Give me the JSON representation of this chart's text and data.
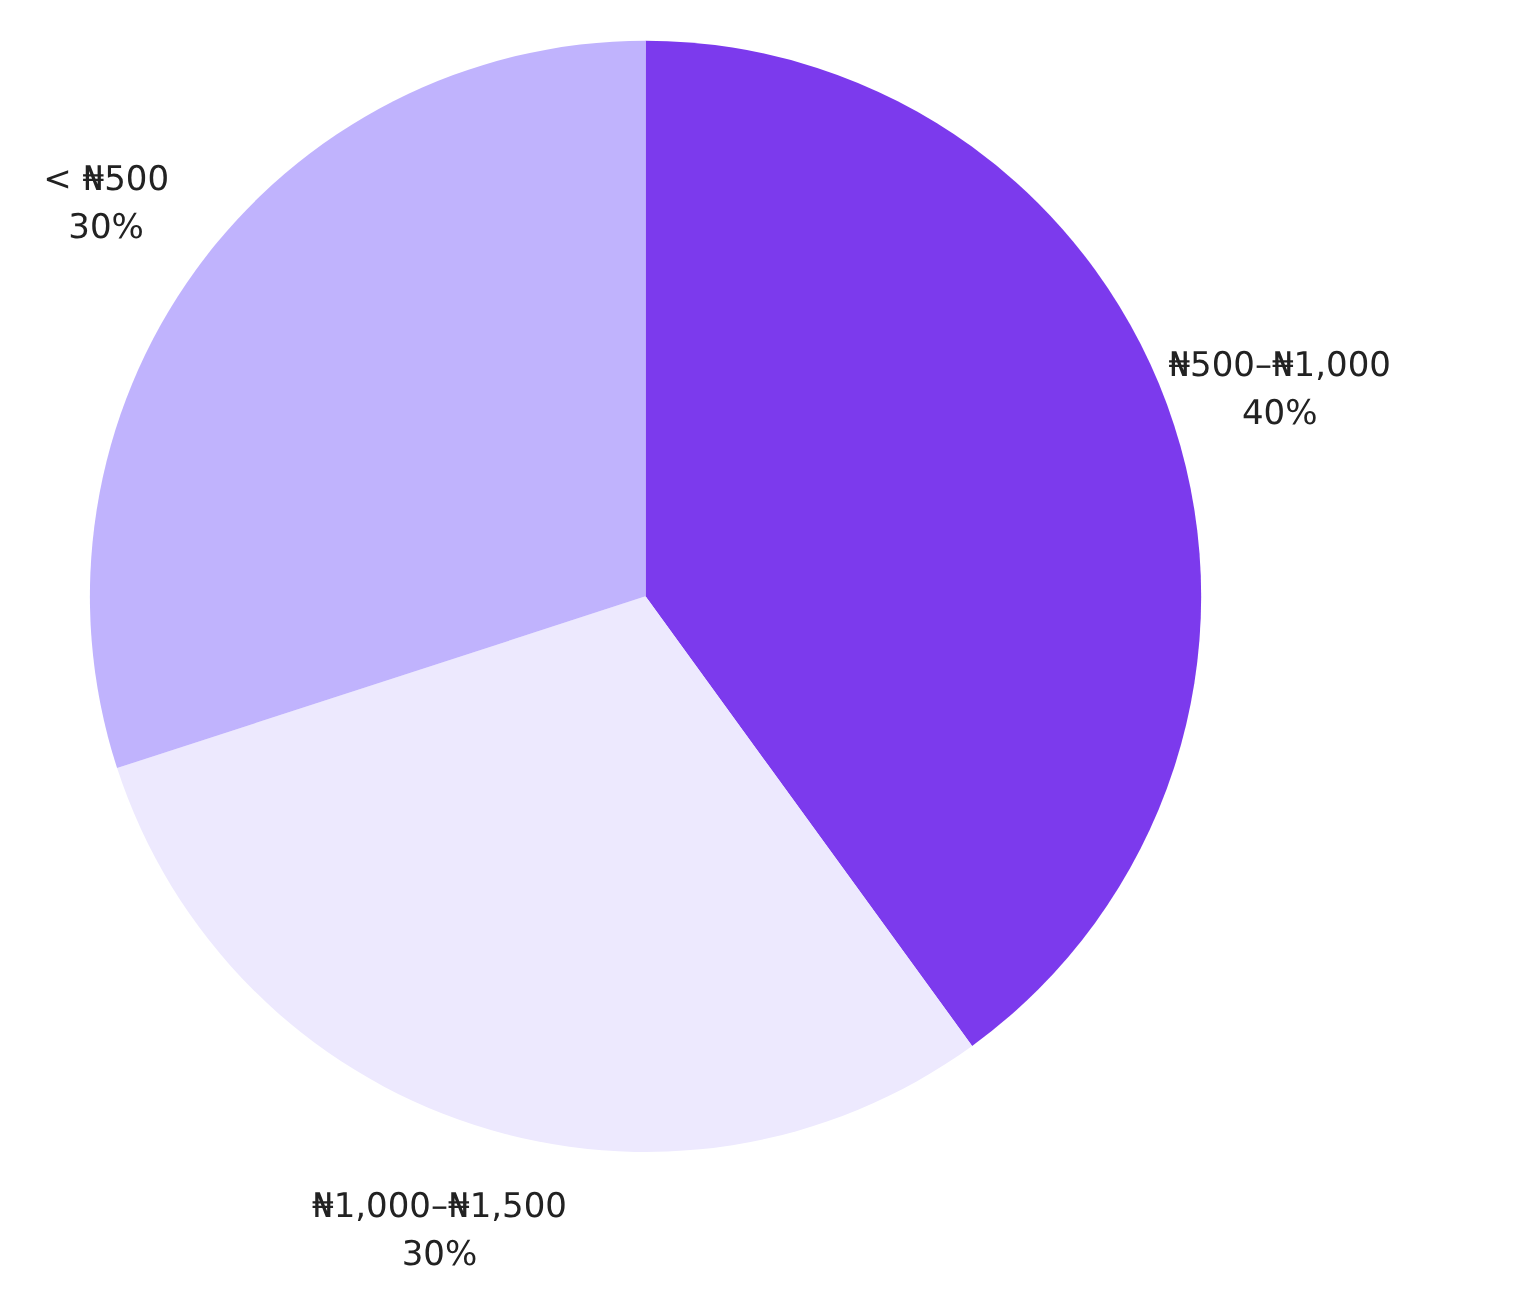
{
  "chart_data": {
    "type": "pie",
    "categories": [
      "₦500–₦1,000",
      "₦1,000–₦1,500",
      "< ₦500"
    ],
    "values": [
      40,
      30,
      30
    ],
    "value_labels": [
      "40%",
      "30%",
      "30%"
    ],
    "colors": [
      "#7c3aed",
      "#ede9fe",
      "#c0b3fd"
    ]
  }
}
